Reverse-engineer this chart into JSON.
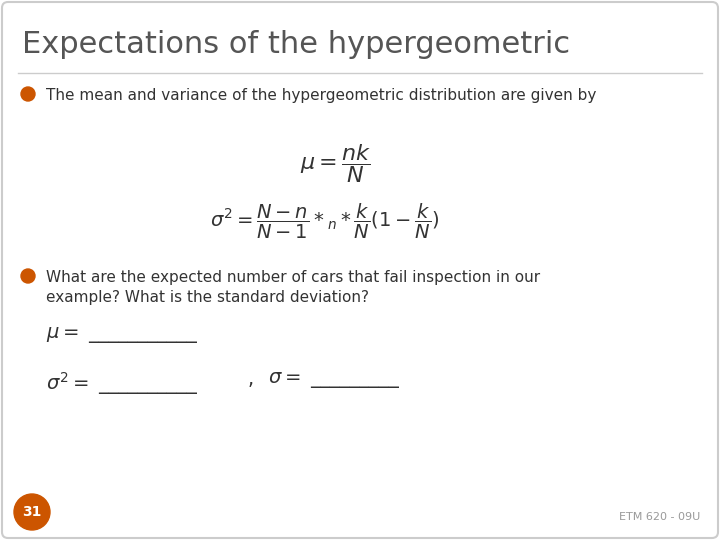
{
  "title": "Expectations of the hypergeometric",
  "title_color": "#555555",
  "title_fontsize": 22,
  "background_color": "#ffffff",
  "border_color": "#cccccc",
  "bullet_color": "#cc5500",
  "bullet1_text": "The mean and variance of the hypergeometric distribution are given by",
  "formula_mu": "$\\mu = \\dfrac{nk}{N}$",
  "formula_sigma": "$\\sigma^2 = \\dfrac{N-n}{N-1} *_{n} * \\dfrac{k}{N}(1 - \\dfrac{k}{N})$",
  "bullet2_line1": "What are the expected number of cars that fail inspection in our",
  "bullet2_line2": "example? What is the standard deviation?",
  "blank_mu": "$\\mu = $ ___________",
  "blank_sigma2": "$\\sigma^2 = $ __________",
  "blank_comma": ",",
  "blank_sigma": "$\\sigma = $ _________",
  "slide_number": "31",
  "slide_number_bg": "#cc5500",
  "footer_text": "ETM 620 - 09U",
  "text_color": "#333333",
  "body_fontsize": 11,
  "formula_fontsize": 14
}
